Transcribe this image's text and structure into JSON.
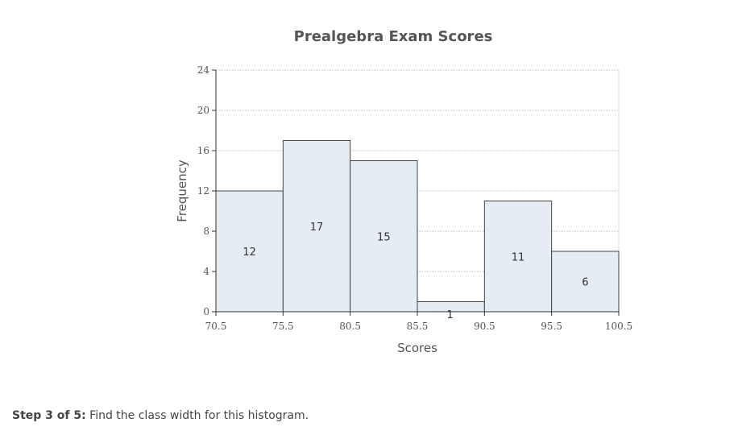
{
  "chart_data": {
    "type": "bar",
    "title": "Prealgebra Exam Scores",
    "xlabel": "Scores",
    "ylabel": "Frequency",
    "bin_edges": [
      70.5,
      75.5,
      80.5,
      85.5,
      90.5,
      95.5,
      100.5
    ],
    "x_tick_labels": [
      "70.5",
      "75.5",
      "80.5",
      "85.5",
      "90.5",
      "95.5",
      "100.5"
    ],
    "values": [
      12,
      17,
      15,
      1,
      11,
      6
    ],
    "value_labels": [
      "12",
      "17",
      "15",
      "1",
      "11",
      "6"
    ],
    "ylim": [
      0,
      24
    ],
    "y_ticks": [
      0,
      4,
      8,
      12,
      16,
      20,
      24
    ],
    "y_tick_labels": [
      "0",
      "4",
      "8",
      "12",
      "16",
      "20",
      "24"
    ],
    "grid": true,
    "colors": {
      "bar_fill": "#e6ecf3",
      "bar_stroke": "#444444",
      "grid": "#bbbbbb"
    }
  },
  "question": {
    "step_label": "Step 3 of 5:",
    "text": "Find the class width for this histogram."
  }
}
